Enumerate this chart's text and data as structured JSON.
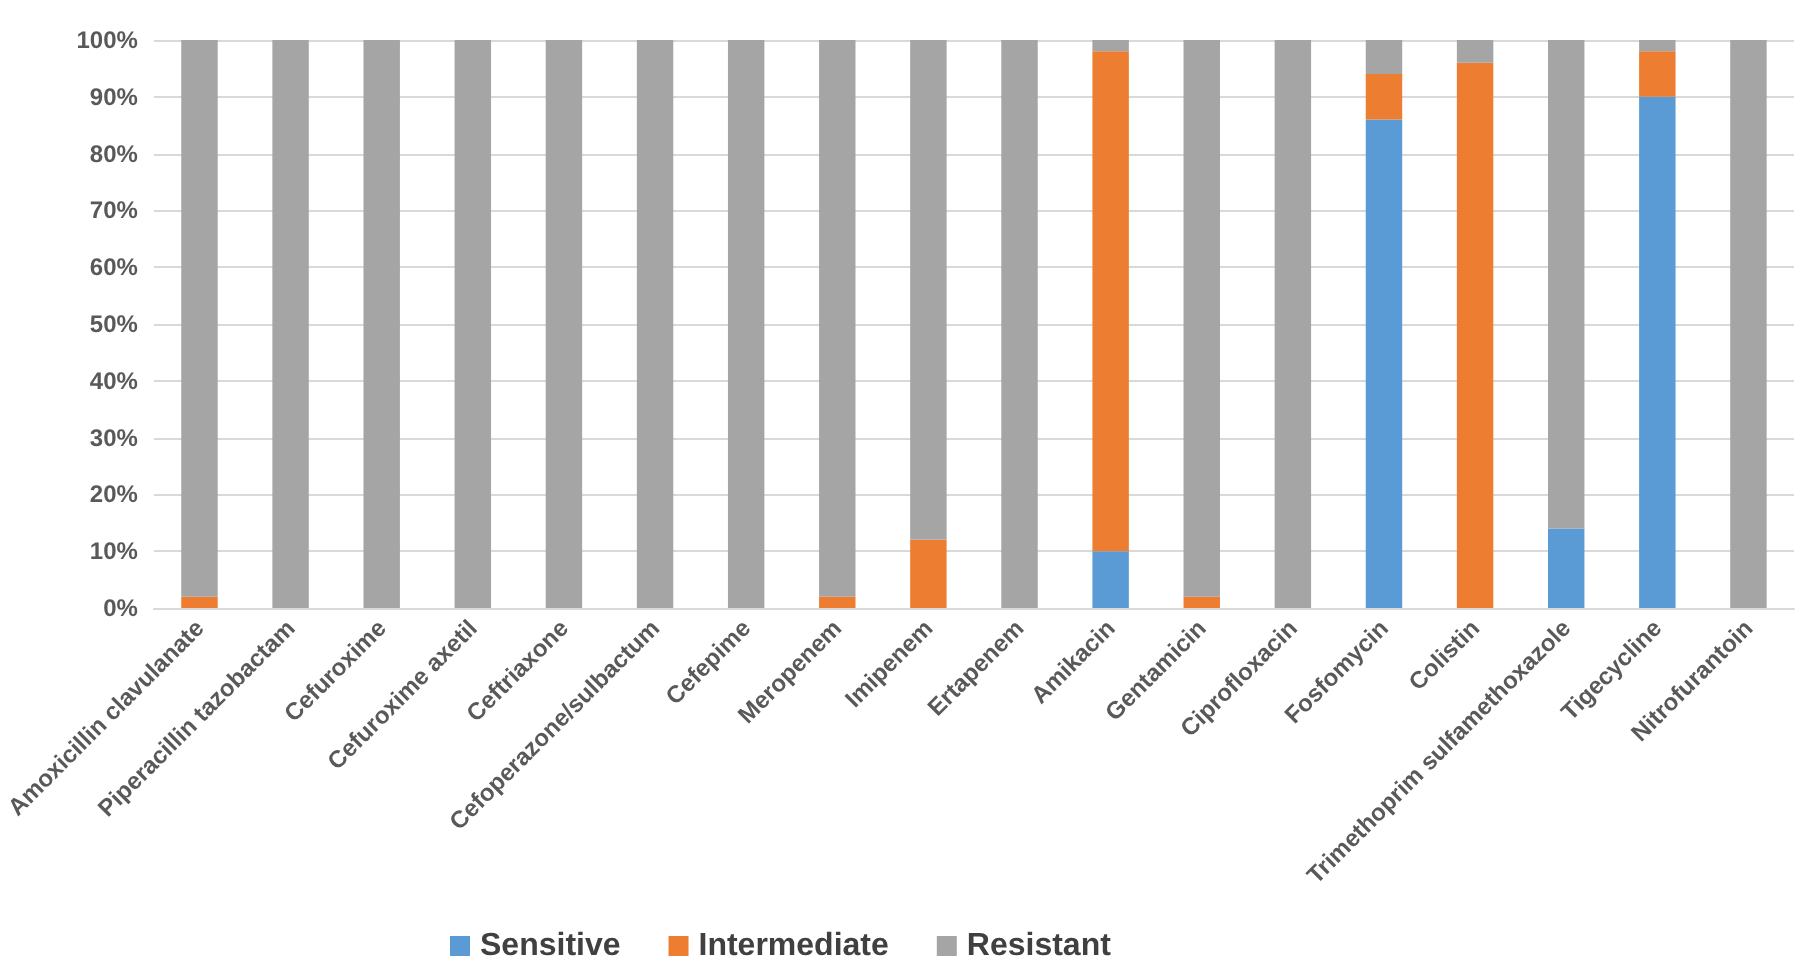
{
  "chart_data": {
    "type": "bar",
    "stacked": true,
    "categories": [
      "Amoxicillin clavulanate",
      "Piperacillin tazobactam",
      "Cefuroxime",
      "Cefuroxime axetil",
      "Ceftriaxone",
      "Cefoperazone/sulbactum",
      "Cefepime",
      "Meropenem",
      "Imipenem",
      "Ertapenem",
      "Amikacin",
      "Gentamicin",
      "Ciprofloxacin",
      "Fosfomycin",
      "Colistin",
      "Trimethoprim sulfamethoxazole",
      "Tigecycline",
      "Nitrofurantoin"
    ],
    "series": [
      {
        "name": "Sensitive",
        "color": "#5b9bd5",
        "values": [
          0,
          0,
          0,
          0,
          0,
          0,
          0,
          0,
          0,
          0,
          10,
          0,
          0,
          86,
          0,
          14,
          90,
          0
        ]
      },
      {
        "name": "Intermediate",
        "color": "#ed7d31",
        "values": [
          2,
          0,
          0,
          0,
          0,
          0,
          0,
          2,
          12,
          0,
          88,
          2,
          0,
          8,
          96,
          0,
          8,
          0
        ]
      },
      {
        "name": "Resistant",
        "color": "#a5a5a5",
        "values": [
          98,
          100,
          100,
          100,
          100,
          100,
          100,
          98,
          88,
          100,
          2,
          98,
          100,
          6,
          4,
          86,
          2,
          100
        ]
      }
    ],
    "ylim": [
      0,
      100
    ],
    "yticks": [
      {
        "value": 0,
        "label": "0%"
      },
      {
        "value": 10,
        "label": "10%"
      },
      {
        "value": 20,
        "label": "20%"
      },
      {
        "value": 30,
        "label": "30%"
      },
      {
        "value": 40,
        "label": "40%"
      },
      {
        "value": 50,
        "label": "50%"
      },
      {
        "value": 60,
        "label": "60%"
      },
      {
        "value": 70,
        "label": "70%"
      },
      {
        "value": 80,
        "label": "80%"
      },
      {
        "value": 90,
        "label": "90%"
      },
      {
        "value": 100,
        "label": "100%"
      }
    ],
    "grid": "y",
    "legend": "bottom"
  }
}
